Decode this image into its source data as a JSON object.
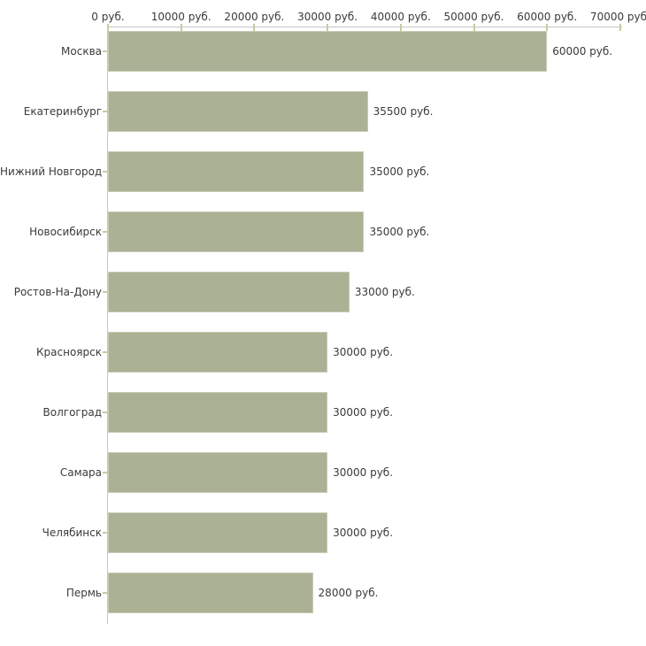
{
  "chart_data": {
    "type": "bar",
    "orientation": "horizontal",
    "title": "",
    "unit": "руб.",
    "categories": [
      "Москва",
      "Екатеринбург",
      "Нижний Новгород",
      "Новосибирск",
      "Ростов-На-Дону",
      "Красноярск",
      "Волгоград",
      "Самара",
      "Челябинск",
      "Пермь"
    ],
    "values": [
      60000,
      35500,
      35000,
      35000,
      33000,
      30000,
      30000,
      30000,
      30000,
      28000
    ],
    "value_labels": [
      "60000 руб.",
      "35500 руб.",
      "35000 руб.",
      "35000 руб.",
      "33000 руб.",
      "30000 руб.",
      "30000 руб.",
      "30000 руб.",
      "30000 руб.",
      "28000 руб."
    ],
    "x_axis": {
      "position": "top",
      "min": 0,
      "max": 70000,
      "step": 10000,
      "tick_values": [
        0,
        10000,
        20000,
        30000,
        40000,
        50000,
        60000,
        70000
      ],
      "tick_labels": [
        "0 руб.",
        "10000 руб.",
        "20000 руб.",
        "30000 руб.",
        "40000 руб.",
        "50000 руб.",
        "60000 руб.",
        "70000 руб."
      ]
    },
    "grid": false,
    "legend": false,
    "colors": {
      "bar": "#abb194",
      "bar_border": "#c6cbb2",
      "axis_line": "#c6c6c6",
      "tick_mark": "#c8caa0",
      "text": "#3a3a3a",
      "background": "#ffffff"
    }
  }
}
